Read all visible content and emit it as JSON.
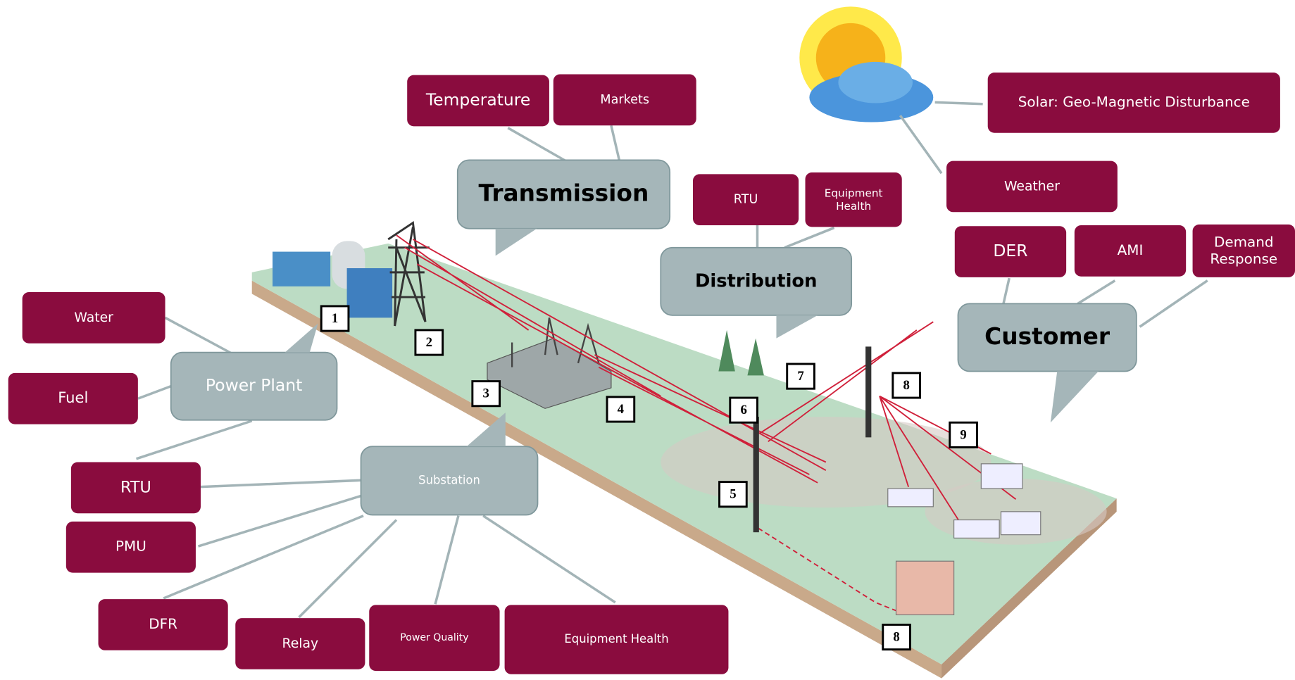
{
  "callouts": [
    {
      "label": "Transmission"
    },
    {
      "label": "Distribution"
    },
    {
      "label": "Customer"
    },
    {
      "label": "Power Plant"
    },
    {
      "label": "Substation"
    }
  ],
  "boxes": [
    {
      "label": "Temperature"
    },
    {
      "label": "Markets"
    },
    {
      "label": "Solar: Geo-Magnetic Disturbance"
    },
    {
      "label": "Weather"
    },
    {
      "label": "RTU"
    },
    {
      "label": "Equipment Health"
    },
    {
      "label": "DER"
    },
    {
      "label": "AMI"
    },
    {
      "label": "Demand Response"
    },
    {
      "label": "Water"
    },
    {
      "label": "Fuel"
    },
    {
      "label": "RTU"
    },
    {
      "label": "PMU"
    },
    {
      "label": "DFR"
    },
    {
      "label": "Relay"
    },
    {
      "label": "Power Quality"
    },
    {
      "label": "Equipment Health"
    }
  ],
  "markers": [
    1,
    2,
    3,
    4,
    5,
    6,
    7,
    8,
    8,
    9
  ]
}
